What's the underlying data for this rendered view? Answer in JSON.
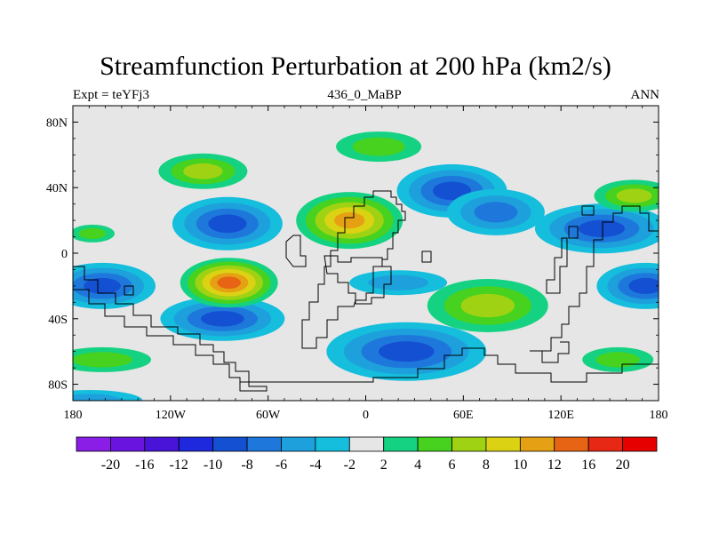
{
  "chart_data": {
    "type": "heatmap",
    "title": "Streamfunction Perturbation at 200 hPa (km2/s)",
    "subtitle_left": "Expt = teYFj3",
    "subtitle_center": "436_0_MaBP",
    "subtitle_right": "ANN",
    "xlabel": "",
    "ylabel": "",
    "x_ticks": [
      "180",
      "120W",
      "60W",
      "0",
      "60E",
      "120E",
      "180"
    ],
    "x_tick_values": [
      -180,
      -120,
      -60,
      0,
      60,
      120,
      180
    ],
    "y_ticks": [
      "80N",
      "40N",
      "0",
      "40S",
      "80S"
    ],
    "y_tick_values": [
      80,
      40,
      0,
      -40,
      -80
    ],
    "xlim": [
      -180,
      180
    ],
    "ylim": [
      -90,
      90
    ],
    "colorbar": {
      "levels": [
        "-20",
        "-16",
        "-12",
        "-10",
        "-8",
        "-6",
        "-4",
        "-2",
        "2",
        "4",
        "6",
        "8",
        "10",
        "12",
        "16",
        "20"
      ],
      "colors": [
        "#8a1ee6",
        "#6a14e0",
        "#4a14d8",
        "#1e28dc",
        "#1450d2",
        "#1e78dc",
        "#1ea0dc",
        "#14bedc",
        "#e6e6e6",
        "#14d282",
        "#46d21e",
        "#a0d214",
        "#dcd214",
        "#e6a014",
        "#e66414",
        "#e62814",
        "#e60000"
      ]
    },
    "features": [
      {
        "kind": "negative",
        "lon": 145,
        "lat": 15,
        "peak": -8
      },
      {
        "kind": "negative",
        "lon": 53,
        "lat": 38,
        "peak": -8
      },
      {
        "kind": "negative",
        "lon": 80,
        "lat": 25,
        "peak": -6
      },
      {
        "kind": "negative",
        "lon": -85,
        "lat": 18,
        "peak": -8
      },
      {
        "kind": "negative",
        "lon": -162,
        "lat": -20,
        "peak": -8
      },
      {
        "kind": "negative",
        "lon": 172,
        "lat": -20,
        "peak": -8
      },
      {
        "kind": "negative",
        "lon": -88,
        "lat": -40,
        "peak": -8
      },
      {
        "kind": "negative",
        "lon": 20,
        "lat": -18,
        "peak": -4
      },
      {
        "kind": "negative",
        "lon": 25,
        "lat": -60,
        "peak": -8
      },
      {
        "kind": "negative",
        "lon": -170,
        "lat": -90,
        "peak": -4
      },
      {
        "kind": "positive",
        "lon": -10,
        "lat": 20,
        "peak": 10
      },
      {
        "kind": "positive",
        "lon": -84,
        "lat": -18,
        "peak": 12
      },
      {
        "kind": "positive",
        "lon": -100,
        "lat": 50,
        "peak": 6
      },
      {
        "kind": "positive",
        "lon": 8,
        "lat": 65,
        "peak": 4
      },
      {
        "kind": "positive",
        "lon": 75,
        "lat": -32,
        "peak": 6
      },
      {
        "kind": "positive",
        "lon": 165,
        "lat": 35,
        "peak": 6
      },
      {
        "kind": "positive",
        "lon": -162,
        "lat": -65,
        "peak": 4
      },
      {
        "kind": "positive",
        "lon": 155,
        "lat": -65,
        "peak": 4
      },
      {
        "kind": "positive",
        "lon": -168,
        "lat": 12,
        "peak": 4
      }
    ]
  }
}
